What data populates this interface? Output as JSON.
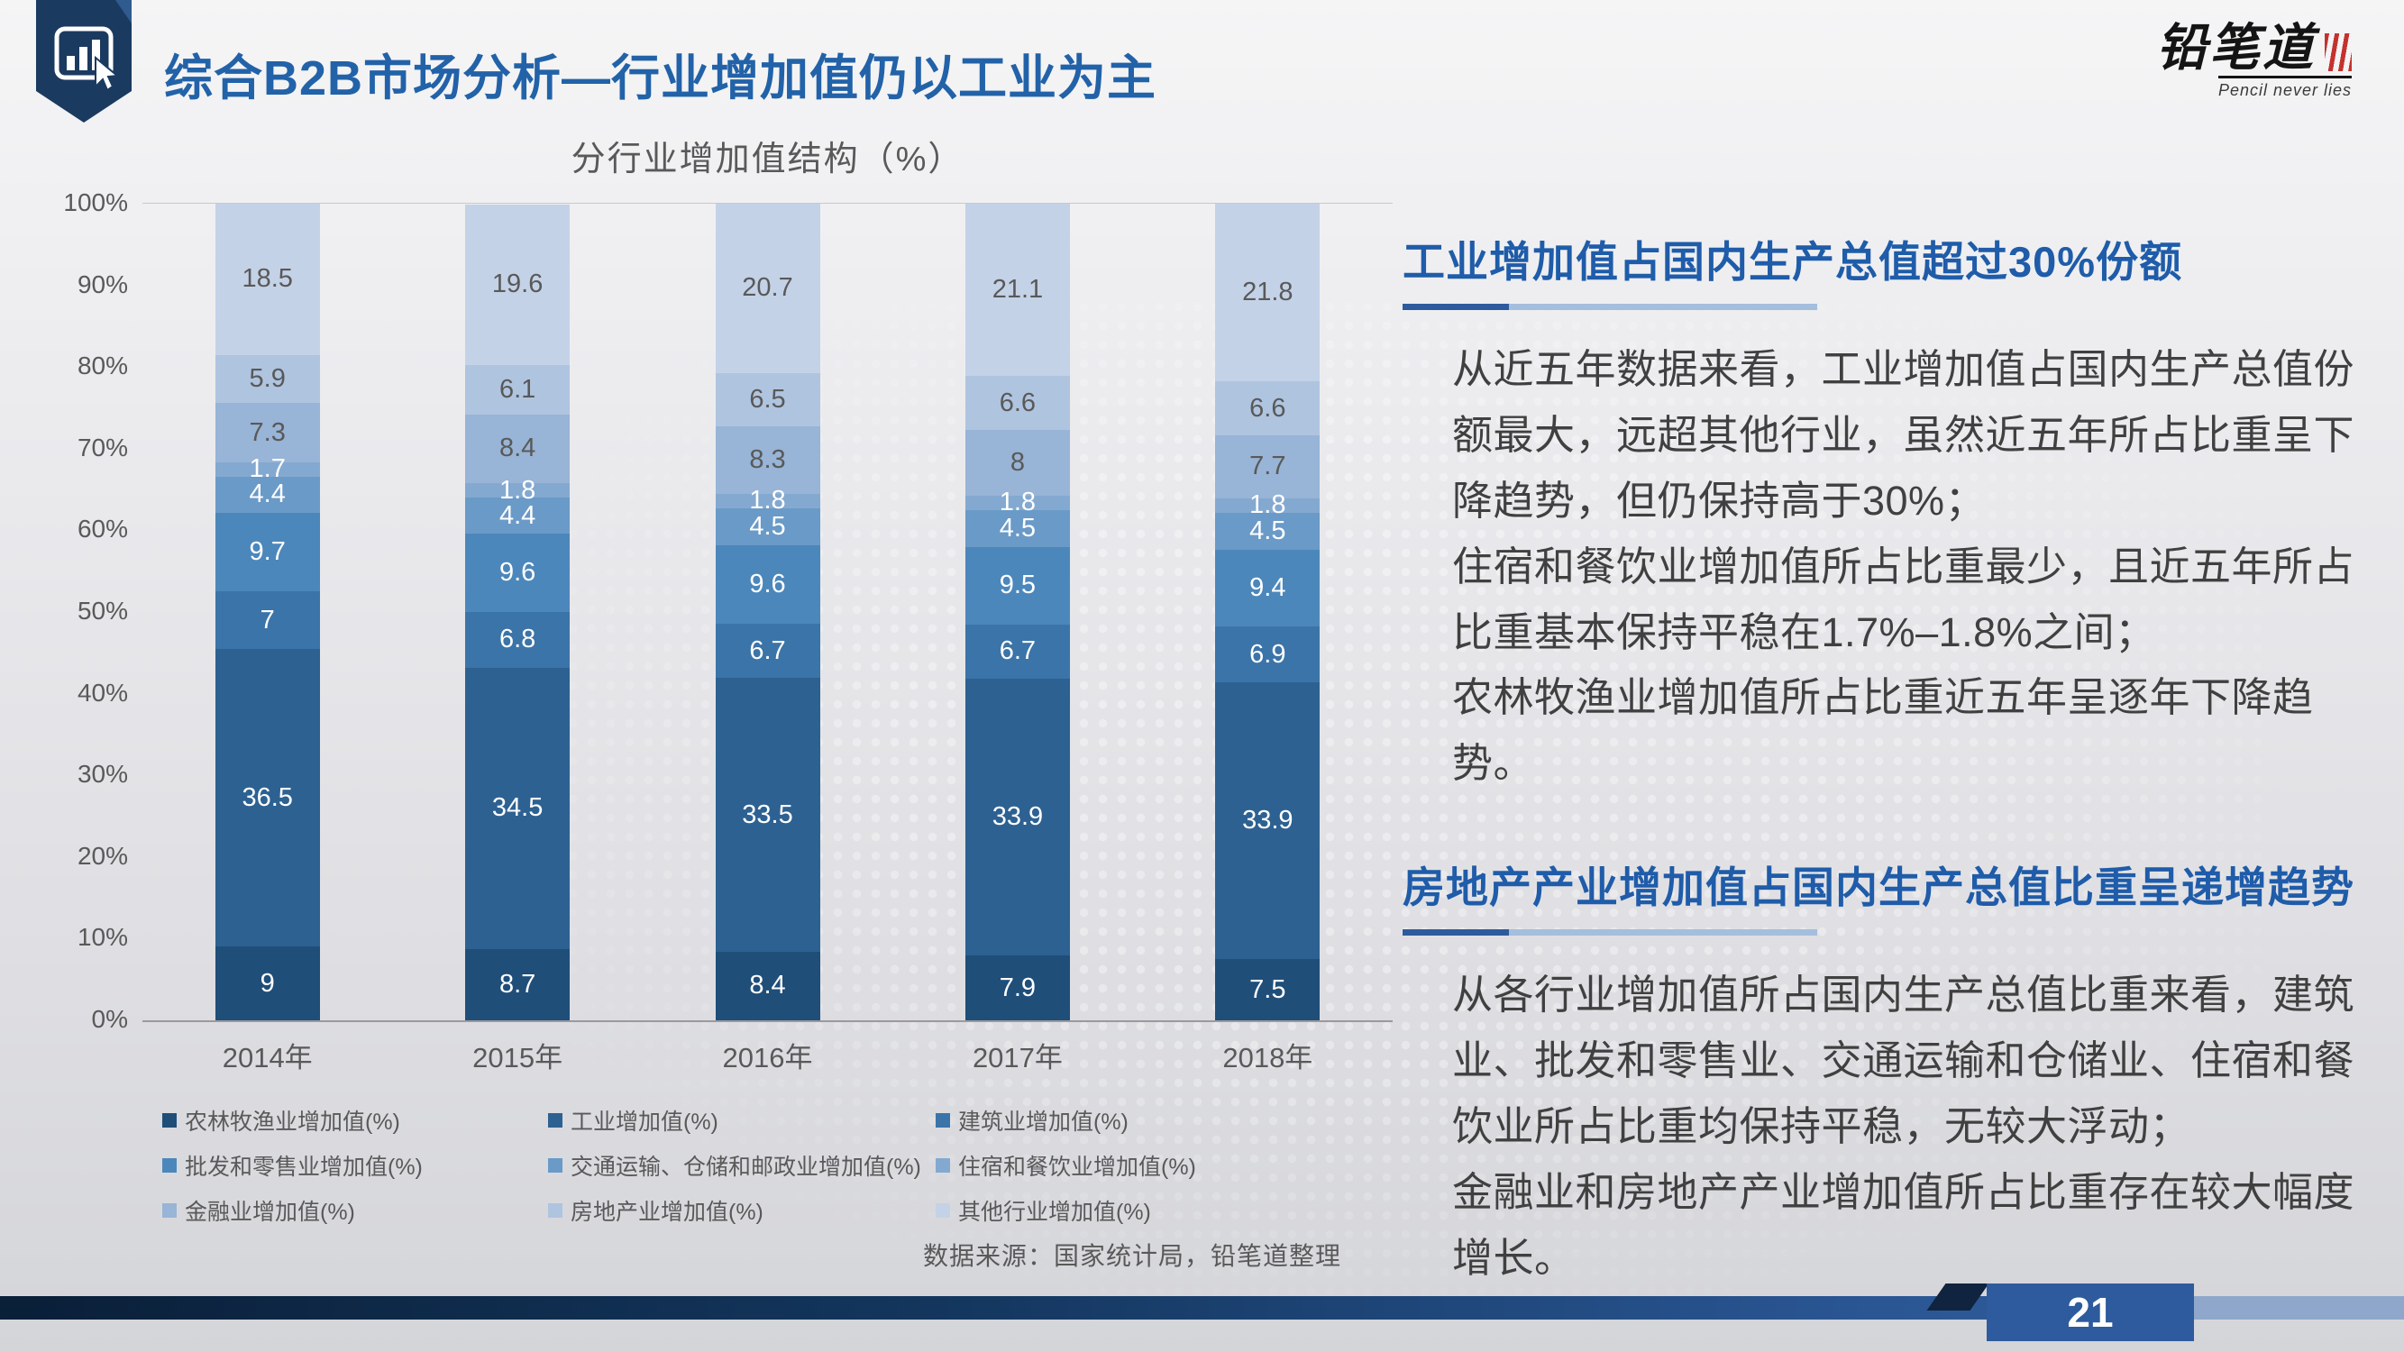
{
  "slide": {
    "title": "综合B2B市场分析—行业增加值仍以工业为主",
    "logo_text": "铅笔道",
    "logo_tagline": "Pencil never lies",
    "page_number": "21",
    "source_note": "数据来源：国家统计局，铅笔道整理"
  },
  "colors": {
    "title_blue": "#2262A8",
    "heading_blue": "#1F5CA9",
    "underline_dark": "#2E5B9E",
    "underline_light": "#A4BEDD",
    "page_box_blue": "#2E5B9E"
  },
  "right_panel": {
    "sections": [
      {
        "heading": "工业增加值占国内生产总值超过30%份额",
        "body": "从近五年数据来看，工业增加值占国内生产总值份额最大，远超其他行业，虽然近五年所占比重呈下降趋势，但仍保持高于30%；\n住宿和餐饮业增加值所占比重最少，且近五年所占比重基本保持平稳在1.7%–1.8%之间；\n农林牧渔业增加值所占比重近五年呈逐年下降趋势。"
      },
      {
        "heading": "房地产产业增加值占国内生产总值比重呈递增趋势",
        "body": "从各行业增加值所占国内生产总值比重来看，建筑业、批发和零售业、交通运输和仓储业、住宿和餐饮业所占比重均保持平稳，无较大浮动；\n金融业和房地产产业增加值所占比重存在较大幅度增长。"
      }
    ]
  },
  "chart_data": {
    "type": "bar",
    "stacked": true,
    "title": "分行业增加值结构（%）",
    "legend_position": "bottom",
    "value_labels": "inside",
    "categories": [
      "2014年",
      "2015年",
      "2016年",
      "2017年",
      "2018年"
    ],
    "y_axis": {
      "min": 0,
      "max": 100,
      "tick_labels": [
        "0%",
        "10%",
        "20%",
        "30%",
        "40%",
        "50%",
        "60%",
        "70%",
        "80%",
        "90%",
        "100%"
      ]
    },
    "series": [
      {
        "name": "农林牧渔业增加值(%)",
        "color": "#1F4E79",
        "label_color": "#FFFFFF",
        "values": [
          9,
          8.7,
          8.4,
          7.9,
          7.5
        ]
      },
      {
        "name": "工业增加值(%)",
        "color": "#2D6192",
        "label_color": "#FFFFFF",
        "values": [
          36.5,
          34.5,
          33.5,
          33.9,
          33.9
        ]
      },
      {
        "name": "建筑业增加值(%)",
        "color": "#3B74A8",
        "label_color": "#FFFFFF",
        "values": [
          7,
          6.8,
          6.7,
          6.7,
          6.9
        ]
      },
      {
        "name": "批发和零售业增加值(%)",
        "color": "#4C87BB",
        "label_color": "#FFFFFF",
        "values": [
          9.7,
          9.6,
          9.6,
          9.5,
          9.4
        ]
      },
      {
        "name": "交通运输、仓储和邮政业增加值(%)",
        "color": "#6A9AC7",
        "label_color": "#FFFFFF",
        "values": [
          4.4,
          4.4,
          4.5,
          4.5,
          4.5
        ]
      },
      {
        "name": "住宿和餐饮业增加值(%)",
        "color": "#84A9D0",
        "label_color": "#FFFFFF",
        "values": [
          1.7,
          1.8,
          1.8,
          1.8,
          1.8
        ]
      },
      {
        "name": "金融业增加值(%)",
        "color": "#98B4D6",
        "label_color": "#595959",
        "values": [
          7.3,
          8.4,
          8.3,
          8,
          7.7
        ]
      },
      {
        "name": "房地产业增加值(%)",
        "color": "#AFC4DF",
        "label_color": "#595959",
        "values": [
          5.9,
          6.1,
          6.5,
          6.6,
          6.6
        ]
      },
      {
        "name": "其他行业增加值(%)",
        "color": "#C4D2E7",
        "label_color": "#595959",
        "values": [
          18.5,
          19.6,
          20.7,
          21.1,
          21.8
        ]
      }
    ]
  }
}
